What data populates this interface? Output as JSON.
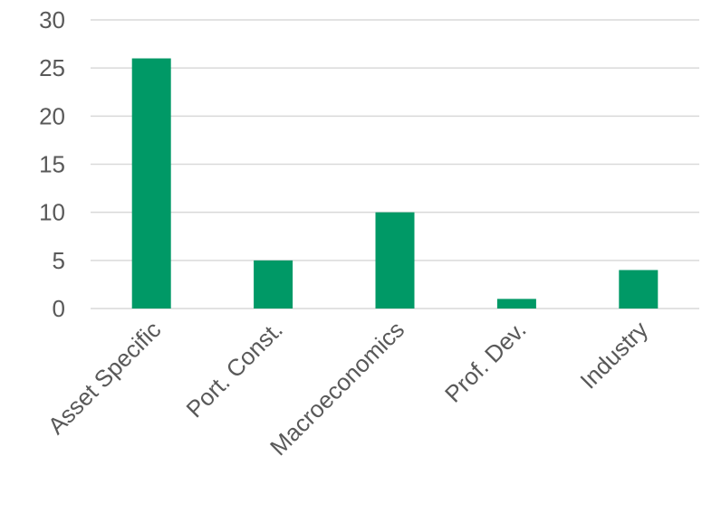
{
  "chart_data": {
    "type": "bar",
    "categories": [
      "Asset Specific",
      "Port. Const.",
      "Macroeconomics",
      "Prof. Dev.",
      "Industry"
    ],
    "values": [
      26,
      5,
      10,
      1,
      4
    ],
    "ylim": [
      0,
      30
    ],
    "yticks": [
      0,
      5,
      10,
      15,
      20,
      25,
      30
    ],
    "grid": true,
    "bar_color": "#009966",
    "legend": "none"
  }
}
